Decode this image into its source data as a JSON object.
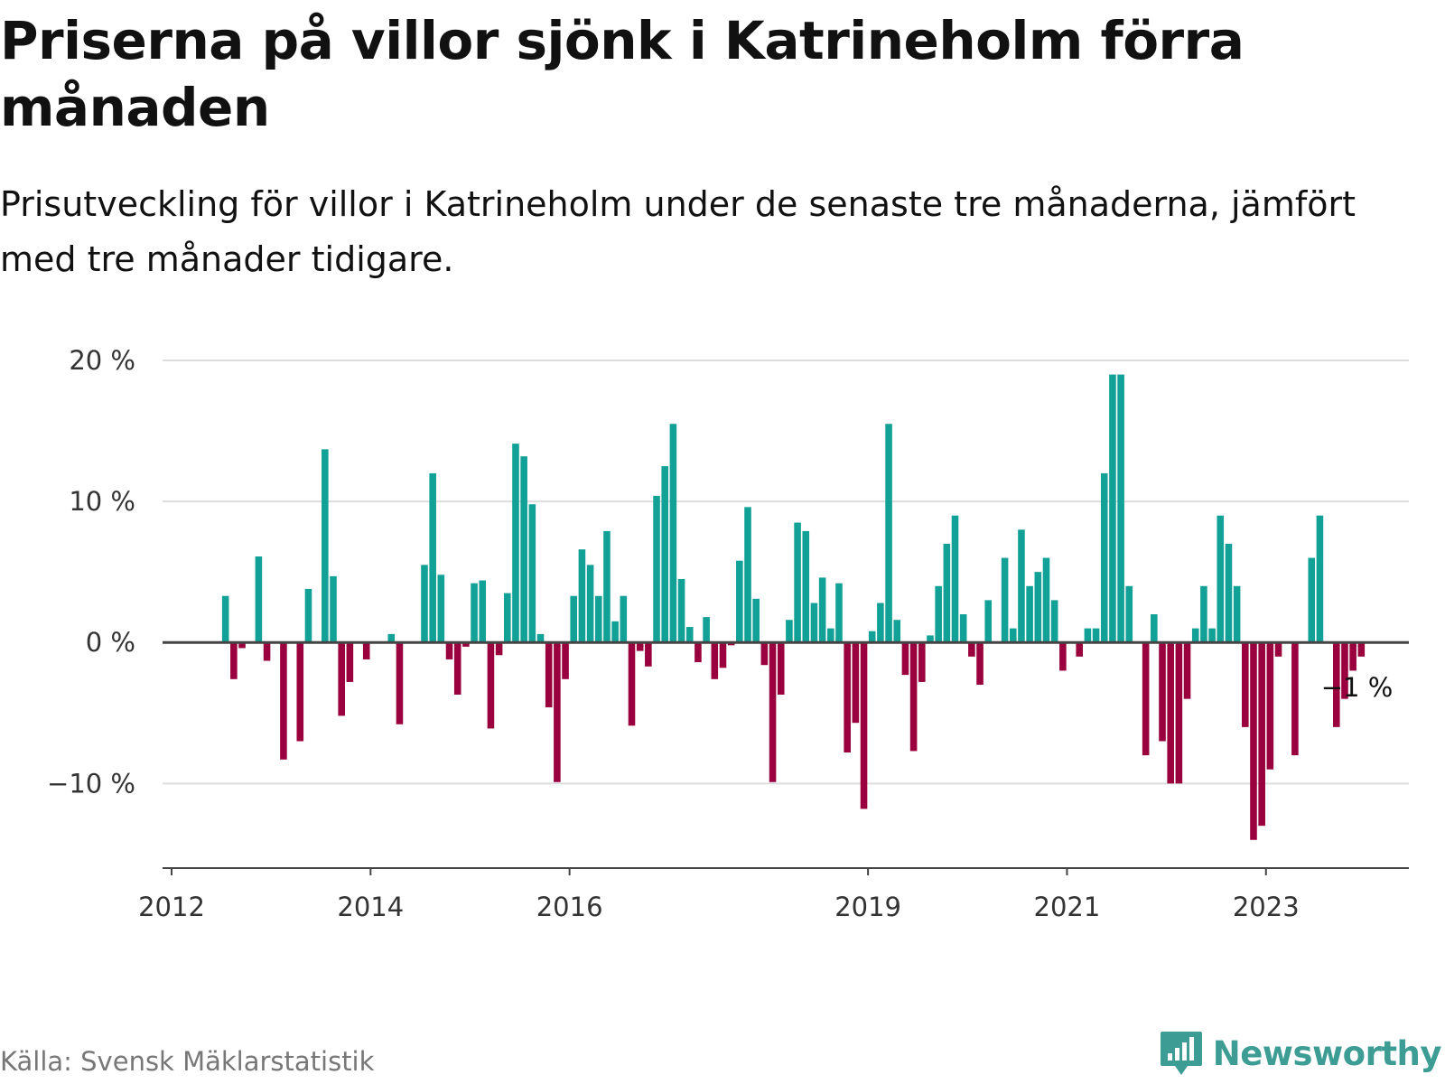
{
  "title": "Priserna på villor sjönk i Katrineholm förra månaden",
  "subtitle": "Prisutveckling för villor i Katrineholm under de senaste tre månaderna, jämfört med tre månader tidigare.",
  "source": "Källa: Svensk Mäklarstatistik",
  "brand": {
    "name": "Newsworthy",
    "icon": "newsworthy-logo-icon",
    "color": "#3d9c93"
  },
  "colors": {
    "positive": "#12a197",
    "negative": "#99003d",
    "grid": "#dddddd",
    "axis": "#444444"
  },
  "chart_data": {
    "type": "bar",
    "title": "Priserna på villor sjönk i Katrineholm förra månaden",
    "subtitle": "Prisutveckling för villor i Katrineholm under de senaste tre månaderna, jämfört med tre månader tidigare.",
    "xlabel": "",
    "ylabel": "",
    "x_start": "2012-01",
    "x_end": "2024-06",
    "ylim": [
      -16,
      20
    ],
    "y_ticks": [
      {
        "value": 20,
        "label": "20 %"
      },
      {
        "value": 10,
        "label": "10 %"
      },
      {
        "value": 0,
        "label": "0 %"
      },
      {
        "value": -10,
        "label": "−10 %"
      }
    ],
    "x_ticks": [
      {
        "value": "2012-01",
        "label": "2012"
      },
      {
        "value": "2014-01",
        "label": "2014"
      },
      {
        "value": "2016-01",
        "label": "2016"
      },
      {
        "value": "2019-01",
        "label": "2019"
      },
      {
        "value": "2021-01",
        "label": "2021"
      },
      {
        "value": "2023-01",
        "label": "2023"
      }
    ],
    "grid": true,
    "units": "%",
    "last_value_label": "−1 %",
    "series": [
      {
        "points": [
          [
            "2012-07",
            3.3
          ],
          [
            "2012-08",
            -2.6
          ],
          [
            "2012-09",
            -0.4
          ],
          [
            "2012-11",
            6.1
          ],
          [
            "2012-12",
            -1.3
          ],
          [
            "2013-02",
            -8.3
          ],
          [
            "2013-04",
            -7.0
          ],
          [
            "2013-05",
            3.8
          ],
          [
            "2013-07",
            13.7
          ],
          [
            "2013-08",
            4.7
          ],
          [
            "2013-09",
            -5.2
          ],
          [
            "2013-10",
            -2.8
          ],
          [
            "2013-12",
            -1.2
          ],
          [
            "2014-03",
            0.6
          ],
          [
            "2014-04",
            -5.8
          ],
          [
            "2014-07",
            5.5
          ],
          [
            "2014-08",
            12.0
          ],
          [
            "2014-09",
            4.8
          ],
          [
            "2014-10",
            -1.2
          ],
          [
            "2014-11",
            -3.7
          ],
          [
            "2014-12",
            -0.3
          ],
          [
            "2015-01",
            4.2
          ],
          [
            "2015-02",
            4.4
          ],
          [
            "2015-03",
            -6.1
          ],
          [
            "2015-04",
            -0.9
          ],
          [
            "2015-05",
            3.5
          ],
          [
            "2015-06",
            14.1
          ],
          [
            "2015-07",
            13.2
          ],
          [
            "2015-08",
            9.8
          ],
          [
            "2015-09",
            0.6
          ],
          [
            "2015-10",
            -4.6
          ],
          [
            "2015-11",
            -9.9
          ],
          [
            "2015-12",
            -2.6
          ],
          [
            "2016-01",
            3.3
          ],
          [
            "2016-02",
            6.6
          ],
          [
            "2016-03",
            5.5
          ],
          [
            "2016-04",
            3.3
          ],
          [
            "2016-05",
            7.9
          ],
          [
            "2016-06",
            1.5
          ],
          [
            "2016-07",
            3.3
          ],
          [
            "2016-08",
            -5.9
          ],
          [
            "2016-09",
            -0.6
          ],
          [
            "2016-10",
            -1.7
          ],
          [
            "2016-11",
            10.4
          ],
          [
            "2016-12",
            12.5
          ],
          [
            "2017-01",
            15.5
          ],
          [
            "2017-02",
            4.5
          ],
          [
            "2017-03",
            1.1
          ],
          [
            "2017-04",
            -1.4
          ],
          [
            "2017-05",
            1.8
          ],
          [
            "2017-06",
            -2.6
          ],
          [
            "2017-07",
            -1.8
          ],
          [
            "2017-08",
            -0.2
          ],
          [
            "2017-09",
            5.8
          ],
          [
            "2017-10",
            9.6
          ],
          [
            "2017-11",
            3.1
          ],
          [
            "2017-12",
            -1.6
          ],
          [
            "2018-01",
            -9.9
          ],
          [
            "2018-02",
            -3.7
          ],
          [
            "2018-03",
            1.6
          ],
          [
            "2018-04",
            8.5
          ],
          [
            "2018-05",
            7.9
          ],
          [
            "2018-06",
            2.8
          ],
          [
            "2018-07",
            4.6
          ],
          [
            "2018-08",
            1.0
          ],
          [
            "2018-09",
            4.2
          ],
          [
            "2018-10",
            -7.8
          ],
          [
            "2018-11",
            -5.7
          ],
          [
            "2018-12",
            -11.8
          ],
          [
            "2019-01",
            0.8
          ],
          [
            "2019-02",
            2.8
          ],
          [
            "2019-03",
            15.5
          ],
          [
            "2019-04",
            1.6
          ],
          [
            "2019-05",
            -2.3
          ],
          [
            "2019-06",
            -7.7
          ],
          [
            "2019-07",
            -2.8
          ],
          [
            "2019-08",
            0.5
          ],
          [
            "2019-09",
            4.0
          ],
          [
            "2019-10",
            7.0
          ],
          [
            "2019-11",
            9.0
          ],
          [
            "2019-12",
            2.0
          ],
          [
            "2020-01",
            -1.0
          ],
          [
            "2020-02",
            -3.0
          ],
          [
            "2020-03",
            3.0
          ],
          [
            "2020-05",
            6.0
          ],
          [
            "2020-06",
            1.0
          ],
          [
            "2020-07",
            8.0
          ],
          [
            "2020-08",
            4.0
          ],
          [
            "2020-09",
            5.0
          ],
          [
            "2020-10",
            6.0
          ],
          [
            "2020-11",
            3.0
          ],
          [
            "2020-12",
            -2.0
          ],
          [
            "2021-02",
            -1.0
          ],
          [
            "2021-03",
            1.0
          ],
          [
            "2021-04",
            1.0
          ],
          [
            "2021-05",
            12.0
          ],
          [
            "2021-06",
            19.0
          ],
          [
            "2021-07",
            19.0
          ],
          [
            "2021-08",
            4.0
          ],
          [
            "2021-10",
            -8.0
          ],
          [
            "2021-11",
            2.0
          ],
          [
            "2021-12",
            -7.0
          ],
          [
            "2022-01",
            -10.0
          ],
          [
            "2022-02",
            -10.0
          ],
          [
            "2022-03",
            -4.0
          ],
          [
            "2022-04",
            1.0
          ],
          [
            "2022-05",
            4.0
          ],
          [
            "2022-06",
            1.0
          ],
          [
            "2022-07",
            9.0
          ],
          [
            "2022-08",
            7.0
          ],
          [
            "2022-09",
            4.0
          ],
          [
            "2022-10",
            -6.0
          ],
          [
            "2022-11",
            -14.0
          ],
          [
            "2022-12",
            -13.0
          ],
          [
            "2023-01",
            -9.0
          ],
          [
            "2023-02",
            -1.0
          ],
          [
            "2023-04",
            -8.0
          ],
          [
            "2023-06",
            6.0
          ],
          [
            "2023-07",
            9.0
          ],
          [
            "2023-09",
            -6.0
          ],
          [
            "2023-10",
            -4.0
          ],
          [
            "2023-11",
            -2.0
          ],
          [
            "2023-12",
            -1.0
          ]
        ]
      }
    ]
  }
}
